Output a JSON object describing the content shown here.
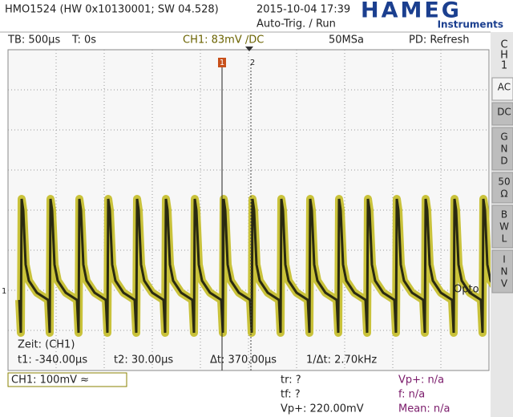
{
  "header": {
    "device": "HMO1524 (HW 0x10130001; SW 04.528)",
    "datetime": "2015-10-04 17:39",
    "trigger_state": "Auto-Trig. / Run",
    "logo": "HAMEG",
    "logo_sub": "Instruments"
  },
  "status": {
    "timebase": "TB: 500µs",
    "trigger_time": "T: 0s",
    "channel": "CH1: 83mV ∕DC",
    "sample_rate": "50MSa",
    "mode": "PD: Refresh"
  },
  "side_menu": {
    "title": [
      "C",
      "H",
      "1"
    ],
    "buttons": [
      [
        "AC"
      ],
      [
        "DC"
      ],
      [
        "G",
        "N",
        "D"
      ],
      [
        "50",
        "Ω"
      ],
      [
        "B",
        "W",
        "L"
      ],
      [
        "I",
        "N",
        "V"
      ]
    ]
  },
  "plot": {
    "cursor_markers": [
      "1",
      "2"
    ],
    "label": "Opto",
    "ground_marker": "1"
  },
  "cursors": {
    "source": "Zeit: (CH1)",
    "t1": "t1: -340.00µs",
    "t2": "t2: 30.00µs",
    "dt": "Δt: 370.00µs",
    "inv_dt": "1/Δt: 2.70kHz"
  },
  "footer": {
    "channel_scale": "CH1: 100mV ≈",
    "measurements_left": [
      "tr: ?",
      "tf: ?",
      "Vp+: 220.00mV"
    ],
    "measurements_right": [
      "Vp+: n/a",
      "f: n/a",
      "Mean: n/a"
    ]
  }
}
